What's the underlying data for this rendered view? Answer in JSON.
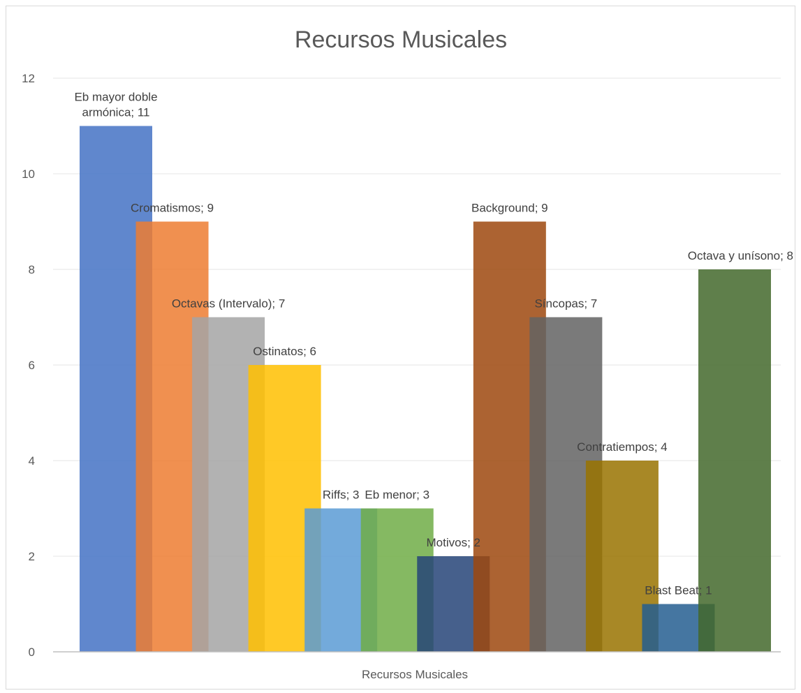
{
  "chart_data": {
    "type": "bar",
    "title": "Recursos  Musicales",
    "categories": [
      "Recursos  Musicales"
    ],
    "xlabel": "",
    "ylabel": "",
    "ylim": [
      0,
      12
    ],
    "yticks": [
      0,
      2,
      4,
      6,
      8,
      10,
      12
    ],
    "grid": true,
    "legend": "none",
    "bar_opacity": 0.85,
    "series": [
      {
        "name": "Eb mayor doble armónica",
        "label_lines": [
          "Eb mayor doble",
          "armónica; 11"
        ],
        "values": [
          11
        ],
        "color": "#4472c4"
      },
      {
        "name": "Cromatismos",
        "label_lines": [
          "Cromatismos; 9"
        ],
        "values": [
          9
        ],
        "color": "#ed7d31"
      },
      {
        "name": "Octavas (Intervalo)",
        "label_lines": [
          "Octavas (Intervalo); 7"
        ],
        "values": [
          7
        ],
        "color": "#a5a5a5"
      },
      {
        "name": "Ostinatos",
        "label_lines": [
          "Ostinatos; 6"
        ],
        "values": [
          6
        ],
        "color": "#ffc000"
      },
      {
        "name": "Riffs",
        "label_lines": [
          "Riffs; 3"
        ],
        "values": [
          3
        ],
        "color": "#5b9bd5"
      },
      {
        "name": "Eb menor",
        "label_lines": [
          "Eb menor; 3"
        ],
        "values": [
          3
        ],
        "color": "#70ad47"
      },
      {
        "name": "Motivos",
        "label_lines": [
          "Motivos; 2"
        ],
        "values": [
          2
        ],
        "color": "#264478"
      },
      {
        "name": "Background",
        "label_lines": [
          "Background; 9"
        ],
        "values": [
          9
        ],
        "color": "#9e480e"
      },
      {
        "name": "Síncopas",
        "label_lines": [
          "Síncopas; 7"
        ],
        "values": [
          7
        ],
        "color": "#636363"
      },
      {
        "name": "Contratiempos",
        "label_lines": [
          "Contratiempos; 4"
        ],
        "values": [
          4
        ],
        "color": "#997300"
      },
      {
        "name": "Blast Beat",
        "label_lines": [
          "Blast Beat; 1"
        ],
        "values": [
          1
        ],
        "color": "#255e91"
      },
      {
        "name": "Octava y unísono",
        "label_lines": [
          "Octava y unísono; 8"
        ],
        "values": [
          8
        ],
        "color": "#43682b"
      }
    ]
  }
}
